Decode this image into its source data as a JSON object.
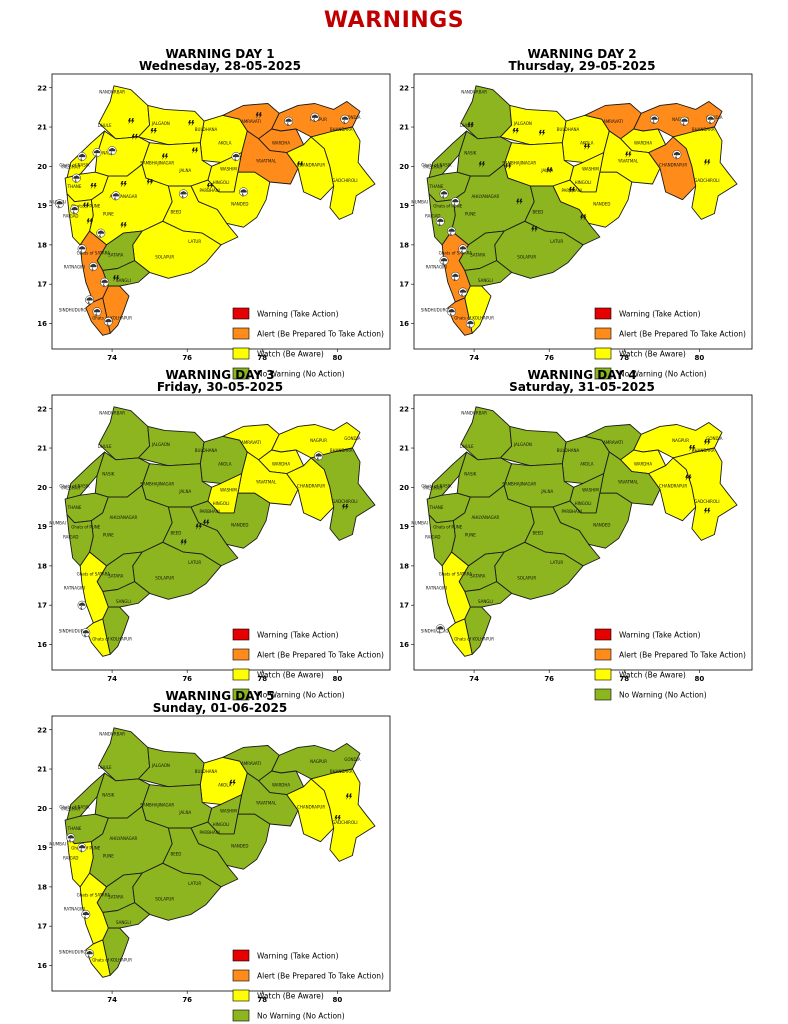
{
  "page": {
    "title": "WARNINGS"
  },
  "colors": {
    "red": "#e60000",
    "orange": "#ff8c1a",
    "yellow": "#ffff00",
    "green": "#8db51f",
    "title": "#c00000"
  },
  "axis": {
    "x_ticks": [
      "74",
      "76",
      "78",
      "80"
    ],
    "y_ticks": [
      "22",
      "21",
      "20",
      "19",
      "18",
      "17",
      "16"
    ]
  },
  "legend": [
    {
      "key": "red",
      "label": "Warning (Take Action)"
    },
    {
      "key": "orange",
      "label": "Alert (Be Prepared To Take Action)"
    },
    {
      "key": "yellow",
      "label": "Watch (Be Aware)"
    },
    {
      "key": "green",
      "label": "No Warning (No Action)"
    }
  ],
  "panels": [
    {
      "heading": "WARNING DAY 1",
      "date": "Wednesday, 28-05-2025",
      "regions": {
        "NORTH_WEST": "yellow",
        "NANDURBAR_DHULE": "yellow",
        "JALGAON": "yellow",
        "BULDHANA_AKOLA": "yellow",
        "AMRAVATI": "orange",
        "NAGPUR_BHANDARA_GONDIA": "orange",
        "WARDHA": "orange",
        "YAVATMAL": "orange",
        "CHANDRAPUR": "yellow",
        "GADCHIROLI": "yellow",
        "WASHIM_HINGOLI": "yellow",
        "NASIK": "yellow",
        "SAMBHAJINAGAR_JALNA": "yellow",
        "PARBHANI_NANDED": "yellow",
        "THANE_PALGHAR": "yellow",
        "MUMBAI_RAIGAD": "yellow",
        "PUNE_AHILYANAGAR": "yellow",
        "BEED_LATUR": "yellow",
        "OSMANABAD_SOLAPUR": "yellow",
        "SATARA": "green",
        "SANGLI": "green",
        "KOLHAPUR": "orange",
        "RATNAGIRI": "orange",
        "SINDHUDURG": "orange"
      },
      "districts": [
        "NANDURBAR",
        "DHULE",
        "JALGAON",
        "BULDHANA",
        "AKOLA",
        "AMRAVATI",
        "NAGPUR",
        "BHANDARA",
        "GONDIA",
        "WARDHA",
        "YAVATMAL",
        "CHANDRAPUR",
        "GADCHIROLI",
        "WASHIM",
        "HINGOLI",
        "NASIK",
        "SAMBHAJINAGAR",
        "JALNA",
        "PARBHANI",
        "NANDED",
        "PALGHAR",
        "THANE",
        "MUMBAI",
        "RAIGAD",
        "AHILYANAGAR",
        "PUNE",
        "BEED",
        "LATUR",
        "SOLAPUR",
        "SATARA",
        "SANGLI",
        "RATNAGIRI",
        "SINDHUDURG",
        "Ghats of NASIK",
        "Ghats of PUNE",
        "Ghats of SATARA",
        "Ghats of KOLHAPUR"
      ]
    },
    {
      "heading": "WARNING DAY 2",
      "date": "Thursday, 29-05-2025",
      "regions": {
        "NORTH_WEST": "green",
        "NANDURBAR_DHULE": "green",
        "JALGAON": "yellow",
        "BULDHANA_AKOLA": "yellow",
        "AMRAVATI": "orange",
        "NAGPUR_BHANDARA_GONDIA": "orange",
        "WARDHA": "yellow",
        "YAVATMAL": "yellow",
        "CHANDRAPUR": "orange",
        "GADCHIROLI": "yellow",
        "WASHIM_HINGOLI": "yellow",
        "NASIK": "green",
        "SAMBHAJINAGAR_JALNA": "yellow",
        "PARBHANI_NANDED": "yellow",
        "THANE_PALGHAR": "green",
        "MUMBAI_RAIGAD": "green",
        "PUNE_AHILYANAGAR": "green",
        "BEED_LATUR": "green",
        "OSMANABAD_SOLAPUR": "green",
        "SATARA": "green",
        "SANGLI": "green",
        "KOLHAPUR": "yellow",
        "RATNAGIRI": "orange",
        "SINDHUDURG": "orange"
      },
      "districts": [
        "NANDURBAR",
        "DHULE",
        "JALGAON",
        "BULDHANA",
        "AKOLA",
        "AMRAVATI",
        "NAGPUR",
        "BHANDARA",
        "GONDIA",
        "WARDHA",
        "YAVATMAL",
        "CHANDRAPUR",
        "GADCHIROLI",
        "WASHIM",
        "HINGOLI",
        "NASIK",
        "SAMBHAJINAGAR",
        "JALNA",
        "PARBHANI",
        "NANDED",
        "PALGHAR",
        "THANE",
        "MUMBAI",
        "RAIGAD",
        "AHILYANAGAR",
        "PUNE",
        "BEED",
        "LATUR",
        "SOLAPUR",
        "SATARA",
        "SANGLI",
        "RATNAGIRI",
        "SINDHUDURG",
        "Ghats of NASIK",
        "Ghats of PUNE",
        "Ghats of SATARA",
        "Ghats of KOLHAPUR"
      ]
    },
    {
      "heading": "WARNING DAY 3",
      "date": "Friday, 30-05-2025",
      "regions": {
        "NORTH_WEST": "green",
        "NANDURBAR_DHULE": "green",
        "JALGAON": "green",
        "BULDHANA_AKOLA": "green",
        "AMRAVATI": "yellow",
        "NAGPUR_BHANDARA_GONDIA": "yellow",
        "WARDHA": "yellow",
        "YAVATMAL": "yellow",
        "CHANDRAPUR": "yellow",
        "GADCHIROLI": "green",
        "WASHIM_HINGOLI": "yellow",
        "NASIK": "green",
        "SAMBHAJINAGAR_JALNA": "green",
        "PARBHANI_NANDED": "green",
        "THANE_PALGHAR": "green",
        "MUMBAI_RAIGAD": "green",
        "PUNE_AHILYANAGAR": "green",
        "BEED_LATUR": "green",
        "OSMANABAD_SOLAPUR": "green",
        "SATARA": "green",
        "SANGLI": "green",
        "KOLHAPUR": "green",
        "RATNAGIRI": "yellow",
        "SINDHUDURG": "yellow"
      },
      "districts": [
        "NANDURBAR",
        "DHULE",
        "JALGAON",
        "BULDHANA",
        "AKOLA",
        "AMRAVATI",
        "NAGPUR",
        "BHANDARA",
        "GONDIA",
        "WARDHA",
        "YAVATMAL",
        "CHANDRAPUR",
        "GADCHIROLI",
        "WASHIM",
        "HINGOLI",
        "NASIK",
        "SAMBHAJINAGAR",
        "JALNA",
        "PARBHANI",
        "NANDED",
        "PALGHAR",
        "THANE",
        "MUMBAI",
        "RAIGAD",
        "AHILYANAGAR",
        "PUNE",
        "BEED",
        "LATUR",
        "SOLAPUR",
        "SATARA",
        "SANGLI",
        "RATNAGIRI",
        "SINDHUDURG",
        "Ghats of NASIK",
        "Ghats of PUNE",
        "Ghats of SATARA",
        "Ghats of KOLHAPUR"
      ]
    },
    {
      "heading": "WARNING DAY 4",
      "date": "Saturday, 31-05-2025",
      "regions": {
        "NORTH_WEST": "green",
        "NANDURBAR_DHULE": "green",
        "JALGAON": "green",
        "BULDHANA_AKOLA": "green",
        "AMRAVATI": "green",
        "NAGPUR_BHANDARA_GONDIA": "yellow",
        "WARDHA": "yellow",
        "YAVATMAL": "green",
        "CHANDRAPUR": "yellow",
        "GADCHIROLI": "yellow",
        "WASHIM_HINGOLI": "green",
        "NASIK": "green",
        "SAMBHAJINAGAR_JALNA": "green",
        "PARBHANI_NANDED": "green",
        "THANE_PALGHAR": "green",
        "MUMBAI_RAIGAD": "green",
        "PUNE_AHILYANAGAR": "green",
        "BEED_LATUR": "green",
        "OSMANABAD_SOLAPUR": "green",
        "SATARA": "green",
        "SANGLI": "green",
        "KOLHAPUR": "green",
        "RATNAGIRI": "yellow",
        "SINDHUDURG": "yellow"
      },
      "districts": [
        "NANDURBAR",
        "DHULE",
        "JALGAON",
        "BULDHANA",
        "AKOLA",
        "AMRAVATI",
        "NAGPUR",
        "BHANDARA",
        "GONDIA",
        "WARDHA",
        "YAVATMAL",
        "CHANDRAPUR",
        "GADCHIROLI",
        "WASHIM",
        "HINGOLI",
        "NASIK",
        "SAMBHAJINAGAR",
        "JALNA",
        "PARBHANI",
        "NANDED",
        "PALGHAR",
        "THANE",
        "MUMBAI",
        "RAIGAD",
        "AHILYANAGAR",
        "PUNE",
        "BEED",
        "LATUR",
        "SOLAPUR",
        "SATARA",
        "SANGLI",
        "RATNAGIRI",
        "SINDHUDURG",
        "Ghats of NASIK",
        "Ghats of PUNE",
        "Ghats of SATARA",
        "Ghats of KOLHAPUR"
      ]
    },
    {
      "heading": "WARNING DAY 5",
      "date": "Sunday, 01-06-2025",
      "regions": {
        "NORTH_WEST": "green",
        "NANDURBAR_DHULE": "green",
        "JALGAON": "green",
        "BULDHANA_AKOLA": "yellow",
        "AMRAVATI": "green",
        "NAGPUR_BHANDARA_GONDIA": "green",
        "WARDHA": "green",
        "YAVATMAL": "green",
        "CHANDRAPUR": "yellow",
        "GADCHIROLI": "yellow",
        "WASHIM_HINGOLI": "green",
        "NASIK": "green",
        "SAMBHAJINAGAR_JALNA": "green",
        "PARBHANI_NANDED": "green",
        "THANE_PALGHAR": "green",
        "MUMBAI_RAIGAD": "yellow",
        "PUNE_AHILYANAGAR": "green",
        "BEED_LATUR": "green",
        "OSMANABAD_SOLAPUR": "green",
        "SATARA": "green",
        "SANGLI": "green",
        "KOLHAPUR": "green",
        "RATNAGIRI": "yellow",
        "SINDHUDURG": "yellow"
      },
      "districts": [
        "NANDURBAR",
        "DHULE",
        "JALGAON",
        "BULDHANA",
        "AKOLA",
        "AMRAVATI",
        "NAGPUR",
        "BHANDARA",
        "GONDIA",
        "WARDHA",
        "YAVATMAL",
        "CHANDRAPUR",
        "GADCHIROLI",
        "WASHIM",
        "HINGOLI",
        "NASIK",
        "SAMBHAJINAGAR",
        "JALNA",
        "PARBHANI",
        "NANDED",
        "PALGHAR",
        "THANE",
        "MUMBAI",
        "RAIGAD",
        "AHILYANAGAR",
        "PUNE",
        "BEED",
        "LATUR",
        "SOLAPUR",
        "SATARA",
        "SANGLI",
        "RATNAGIRI",
        "SINDHUDURG",
        "Ghats of NASIK",
        "Ghats of PUNE",
        "Ghats of SATARA",
        "Ghats of KOLHAPUR"
      ]
    }
  ]
}
